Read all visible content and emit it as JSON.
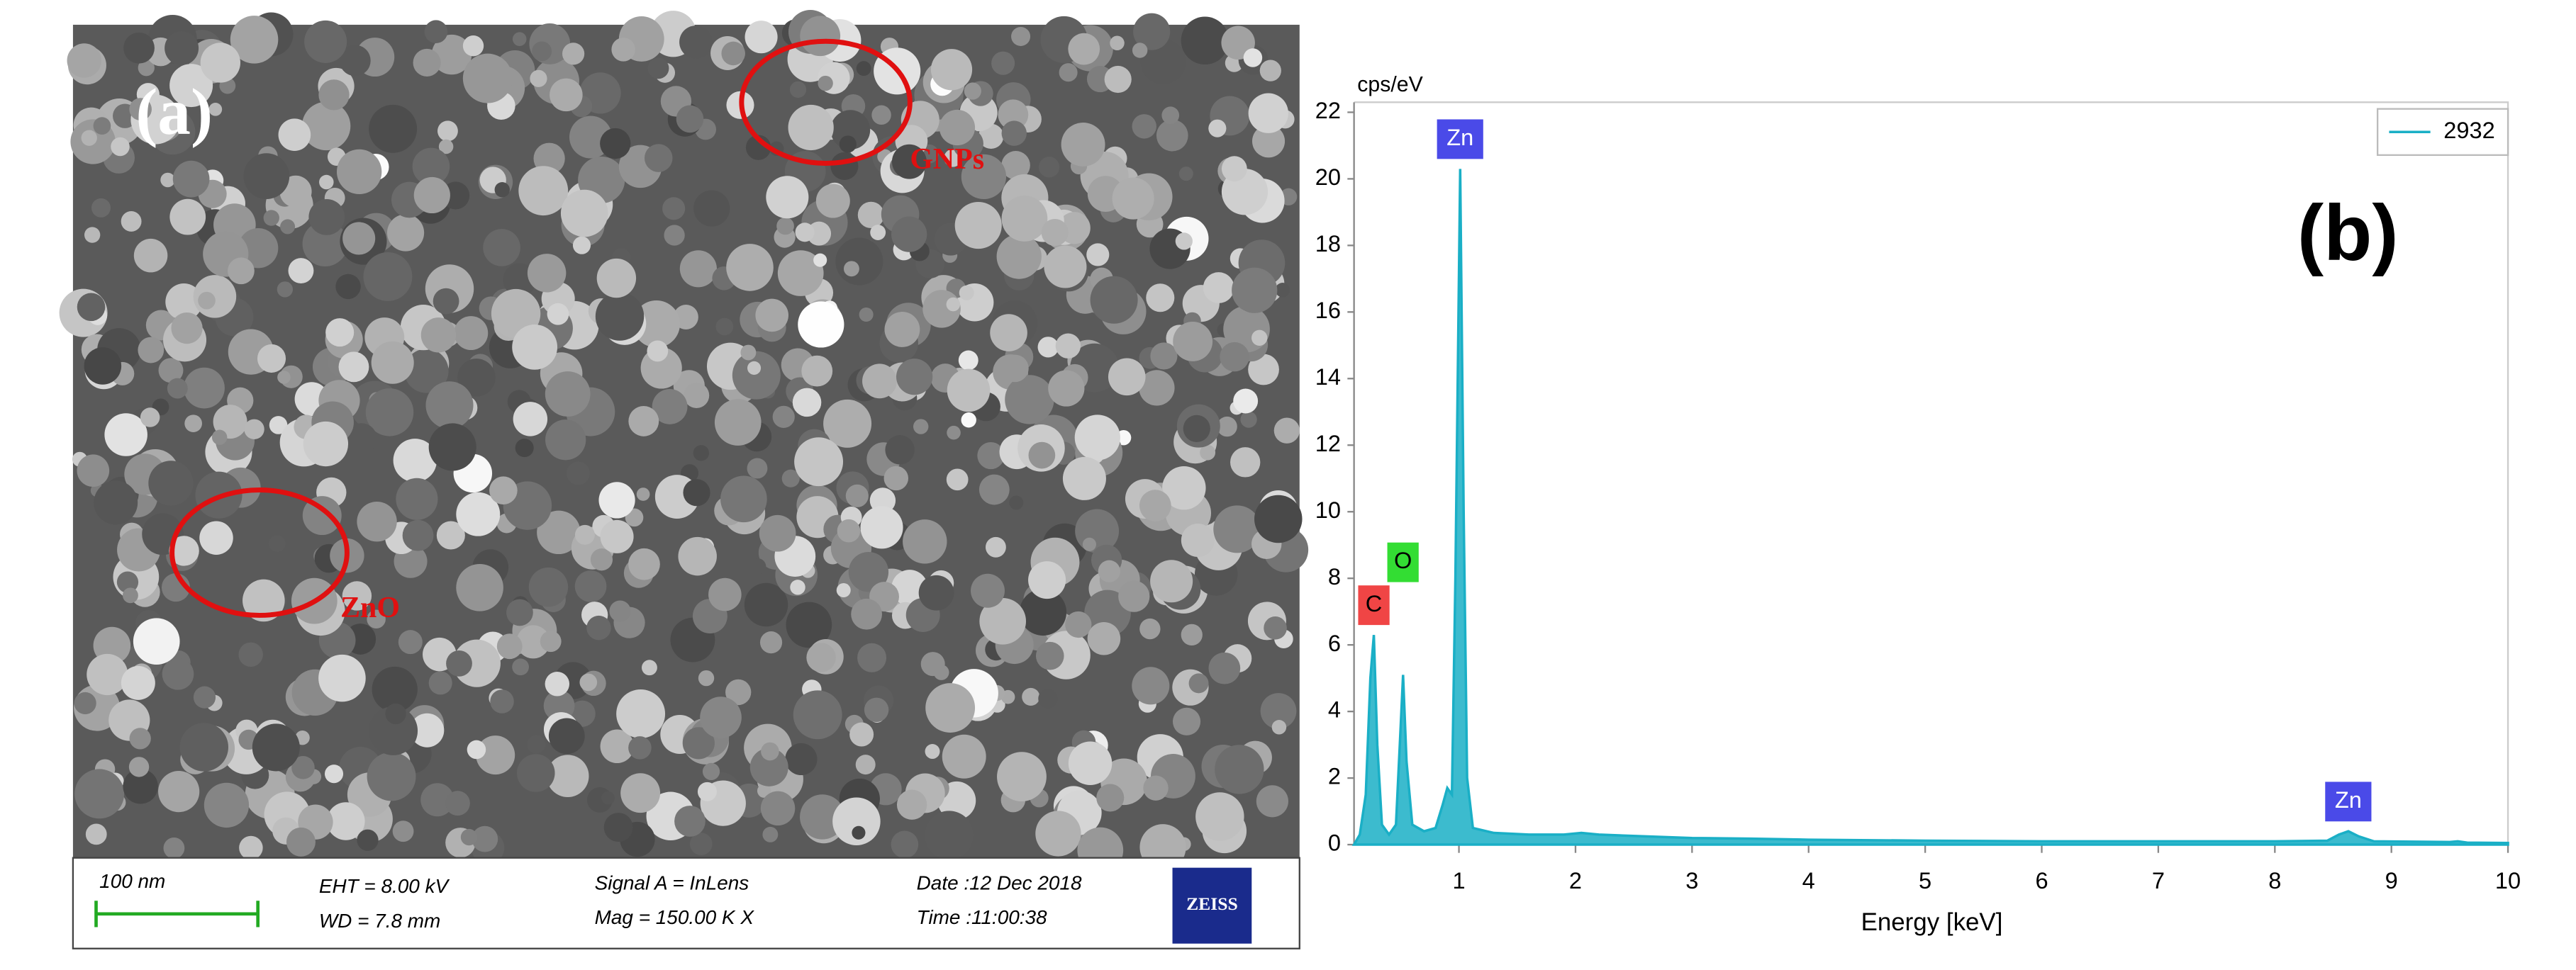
{
  "sem_image": {
    "panel_label": "(a)",
    "annotations": [
      "GNPs",
      "ZnO"
    ],
    "info_bar": {
      "scale": "100 nm",
      "eht": "EHT = 8.00 kV",
      "wd": "WD = 7.8 mm",
      "signal": "Signal A = InLens",
      "mag": "Mag = 150.00 K X",
      "date": "Date :12 Dec 2018",
      "time": "Time :11:00:38",
      "logo": "ZEISS"
    }
  },
  "chart_data": {
    "type": "area",
    "panel_label": "(b)",
    "y_label": "cps/eV",
    "x_label": "Energy [keV]",
    "x": [
      0.1,
      0.15,
      0.2,
      0.24,
      0.27,
      0.3,
      0.34,
      0.4,
      0.46,
      0.5,
      0.52,
      0.55,
      0.6,
      0.7,
      0.8,
      0.86,
      0.9,
      0.94,
      0.97,
      1.01,
      1.04,
      1.07,
      1.12,
      1.3,
      1.6,
      1.9,
      2.05,
      2.2,
      2.6,
      3.0,
      3.5,
      4,
      5,
      6,
      7,
      8,
      8.45,
      8.55,
      8.63,
      8.72,
      8.85,
      9.5,
      9.57,
      9.65,
      10
    ],
    "series": [
      {
        "name": "2932",
        "color": "#1aafc6",
        "values": [
          0,
          0.3,
          1.5,
          5,
          6.3,
          3,
          0.6,
          0.3,
          0.6,
          3.5,
          5.1,
          2.5,
          0.6,
          0.4,
          0.5,
          1.2,
          1.7,
          1.5,
          8,
          20.3,
          10,
          2,
          0.5,
          0.35,
          0.3,
          0.3,
          0.35,
          0.3,
          0.25,
          0.2,
          0.18,
          0.15,
          0.12,
          0.1,
          0.1,
          0.1,
          0.12,
          0.3,
          0.4,
          0.25,
          0.1,
          0.08,
          0.1,
          0.06,
          0.05
        ]
      }
    ],
    "peak_labels": [
      {
        "text": "C",
        "x": 0.27,
        "color": "#f04545"
      },
      {
        "text": "O",
        "x": 0.52,
        "color": "#33dd33"
      },
      {
        "text": "Zn",
        "x": 1.01,
        "color": "#4a4ae8"
      },
      {
        "text": "Zn",
        "x": 8.63,
        "color": "#4a4ae8"
      }
    ],
    "xlim": [
      0.1,
      10
    ],
    "ylim": [
      0,
      22.3
    ],
    "xticks": [
      1,
      2,
      3,
      4,
      5,
      6,
      7,
      8,
      9,
      10
    ],
    "yticks": [
      0,
      2,
      4,
      6,
      8,
      10,
      12,
      14,
      16,
      18,
      20,
      22
    ],
    "legend": "upper right"
  }
}
